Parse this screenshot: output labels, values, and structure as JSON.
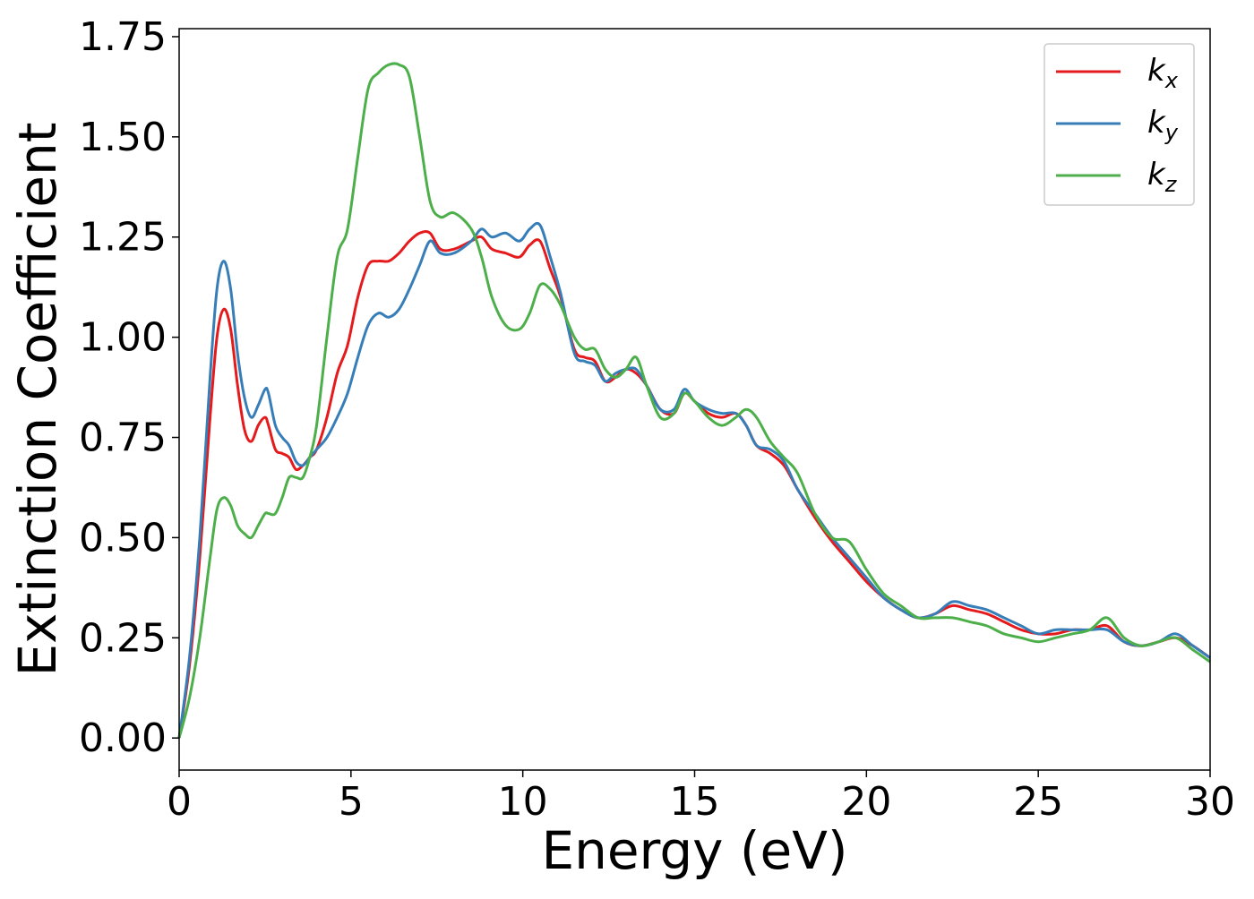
{
  "chart_data": {
    "type": "line",
    "title": "",
    "xlabel": "Energy (eV)",
    "ylabel": "Extinction Coefficient",
    "xlim": [
      0,
      30
    ],
    "ylim": [
      -0.08,
      1.77
    ],
    "xticks": [
      0,
      5,
      10,
      15,
      20,
      25,
      30
    ],
    "yticks": [
      0.0,
      0.25,
      0.5,
      0.75,
      1.0,
      1.25,
      1.5,
      1.75
    ],
    "xtick_labels": [
      "0",
      "5",
      "10",
      "15",
      "20",
      "25",
      "30"
    ],
    "ytick_labels": [
      "0.00",
      "0.25",
      "0.50",
      "0.75",
      "1.00",
      "1.25",
      "1.50",
      "1.75"
    ],
    "grid": false,
    "legend_position": "top-right",
    "series": [
      {
        "name": "k_x",
        "color": "#e41a1c",
        "x": [
          0,
          0.3,
          0.6,
          0.9,
          1.1,
          1.3,
          1.5,
          1.7,
          1.9,
          2.1,
          2.3,
          2.5,
          2.6,
          2.8,
          3.0,
          3.2,
          3.4,
          3.6,
          3.8,
          4.0,
          4.3,
          4.6,
          4.9,
          5.2,
          5.5,
          5.8,
          6.1,
          6.4,
          6.7,
          7.0,
          7.3,
          7.6,
          8.0,
          8.5,
          8.8,
          9.1,
          9.5,
          9.9,
          10.2,
          10.5,
          10.8,
          11.1,
          11.5,
          11.8,
          12.1,
          12.4,
          12.7,
          13.0,
          13.3,
          13.6,
          14.0,
          14.4,
          14.7,
          15.0,
          15.4,
          15.8,
          16.2,
          16.5,
          16.8,
          17.2,
          17.6,
          18.0,
          18.5,
          19.0,
          19.5,
          20.0,
          20.5,
          21.0,
          21.5,
          22.0,
          22.5,
          23.0,
          23.5,
          24.0,
          24.5,
          25.0,
          25.5,
          26.0,
          26.5,
          27.0,
          27.5,
          28.0,
          28.5,
          29.0,
          29.5,
          30.0
        ],
        "y": [
          0.0,
          0.18,
          0.45,
          0.8,
          1.0,
          1.07,
          1.02,
          0.88,
          0.77,
          0.74,
          0.78,
          0.8,
          0.78,
          0.72,
          0.71,
          0.7,
          0.67,
          0.68,
          0.7,
          0.72,
          0.8,
          0.91,
          0.98,
          1.1,
          1.18,
          1.19,
          1.19,
          1.21,
          1.24,
          1.26,
          1.26,
          1.22,
          1.22,
          1.24,
          1.25,
          1.22,
          1.21,
          1.2,
          1.23,
          1.24,
          1.17,
          1.1,
          0.97,
          0.95,
          0.94,
          0.89,
          0.9,
          0.92,
          0.91,
          0.88,
          0.82,
          0.81,
          0.86,
          0.84,
          0.81,
          0.8,
          0.81,
          0.78,
          0.73,
          0.71,
          0.68,
          0.62,
          0.55,
          0.49,
          0.44,
          0.39,
          0.35,
          0.32,
          0.3,
          0.31,
          0.33,
          0.32,
          0.31,
          0.29,
          0.27,
          0.26,
          0.26,
          0.27,
          0.27,
          0.28,
          0.24,
          0.23,
          0.24,
          0.25,
          0.23,
          0.2
        ]
      },
      {
        "name": "k_y",
        "color": "#377eb8",
        "x": [
          0,
          0.3,
          0.6,
          0.9,
          1.1,
          1.3,
          1.5,
          1.7,
          1.9,
          2.1,
          2.3,
          2.5,
          2.6,
          2.8,
          3.0,
          3.2,
          3.4,
          3.6,
          3.8,
          4.0,
          4.3,
          4.6,
          4.9,
          5.2,
          5.5,
          5.8,
          6.1,
          6.4,
          6.7,
          7.0,
          7.3,
          7.6,
          8.0,
          8.5,
          8.8,
          9.1,
          9.5,
          9.9,
          10.2,
          10.5,
          10.8,
          11.1,
          11.5,
          11.8,
          12.1,
          12.4,
          12.7,
          13.0,
          13.3,
          13.6,
          14.0,
          14.4,
          14.7,
          15.0,
          15.4,
          15.8,
          16.2,
          16.5,
          16.8,
          17.2,
          17.6,
          18.0,
          18.5,
          19.0,
          19.5,
          20.0,
          20.5,
          21.0,
          21.5,
          22.0,
          22.5,
          23.0,
          23.5,
          24.0,
          24.5,
          25.0,
          25.5,
          26.0,
          26.5,
          27.0,
          27.5,
          28.0,
          28.5,
          29.0,
          29.5,
          30.0
        ],
        "y": [
          0.0,
          0.2,
          0.5,
          0.9,
          1.12,
          1.19,
          1.12,
          0.96,
          0.85,
          0.8,
          0.83,
          0.87,
          0.86,
          0.78,
          0.75,
          0.73,
          0.69,
          0.68,
          0.7,
          0.72,
          0.75,
          0.8,
          0.86,
          0.95,
          1.03,
          1.06,
          1.05,
          1.07,
          1.12,
          1.18,
          1.24,
          1.21,
          1.21,
          1.24,
          1.27,
          1.25,
          1.26,
          1.24,
          1.27,
          1.28,
          1.2,
          1.11,
          0.96,
          0.94,
          0.93,
          0.89,
          0.91,
          0.92,
          0.92,
          0.88,
          0.82,
          0.82,
          0.87,
          0.84,
          0.82,
          0.81,
          0.81,
          0.78,
          0.73,
          0.72,
          0.69,
          0.62,
          0.56,
          0.5,
          0.45,
          0.4,
          0.35,
          0.32,
          0.3,
          0.31,
          0.34,
          0.33,
          0.32,
          0.3,
          0.28,
          0.26,
          0.27,
          0.27,
          0.27,
          0.27,
          0.24,
          0.23,
          0.24,
          0.26,
          0.23,
          0.2
        ]
      },
      {
        "name": "k_z",
        "color": "#4daf4a",
        "x": [
          0,
          0.3,
          0.6,
          0.9,
          1.1,
          1.3,
          1.5,
          1.7,
          1.9,
          2.1,
          2.3,
          2.5,
          2.6,
          2.8,
          3.0,
          3.2,
          3.4,
          3.6,
          3.8,
          4.0,
          4.3,
          4.6,
          4.9,
          5.2,
          5.5,
          5.8,
          6.1,
          6.4,
          6.7,
          7.0,
          7.3,
          7.6,
          8.0,
          8.5,
          8.8,
          9.1,
          9.5,
          9.9,
          10.2,
          10.5,
          10.8,
          11.1,
          11.5,
          11.8,
          12.1,
          12.4,
          12.7,
          13.0,
          13.3,
          13.6,
          14.0,
          14.4,
          14.7,
          15.0,
          15.4,
          15.8,
          16.2,
          16.5,
          16.8,
          17.2,
          17.6,
          18.0,
          18.5,
          19.0,
          19.5,
          20.0,
          20.5,
          21.0,
          21.5,
          22.0,
          22.5,
          23.0,
          23.5,
          24.0,
          24.5,
          25.0,
          25.5,
          26.0,
          26.5,
          27.0,
          27.5,
          28.0,
          28.5,
          29.0,
          29.5,
          30.0
        ],
        "y": [
          0.0,
          0.1,
          0.25,
          0.45,
          0.57,
          0.6,
          0.58,
          0.53,
          0.51,
          0.5,
          0.53,
          0.56,
          0.56,
          0.56,
          0.6,
          0.65,
          0.65,
          0.65,
          0.7,
          0.78,
          1.0,
          1.2,
          1.27,
          1.45,
          1.62,
          1.66,
          1.68,
          1.68,
          1.65,
          1.5,
          1.34,
          1.3,
          1.31,
          1.27,
          1.2,
          1.1,
          1.03,
          1.02,
          1.06,
          1.13,
          1.12,
          1.08,
          1.0,
          0.97,
          0.97,
          0.92,
          0.9,
          0.92,
          0.95,
          0.88,
          0.8,
          0.81,
          0.86,
          0.84,
          0.8,
          0.78,
          0.8,
          0.82,
          0.8,
          0.74,
          0.7,
          0.66,
          0.56,
          0.5,
          0.49,
          0.42,
          0.36,
          0.33,
          0.3,
          0.3,
          0.3,
          0.29,
          0.28,
          0.26,
          0.25,
          0.24,
          0.25,
          0.26,
          0.27,
          0.3,
          0.25,
          0.23,
          0.24,
          0.25,
          0.22,
          0.19
        ]
      }
    ]
  },
  "legend": {
    "entries": [
      {
        "base": "k",
        "sub": "x",
        "color": "#e41a1c"
      },
      {
        "base": "k",
        "sub": "y",
        "color": "#377eb8"
      },
      {
        "base": "k",
        "sub": "z",
        "color": "#4daf4a"
      }
    ]
  }
}
